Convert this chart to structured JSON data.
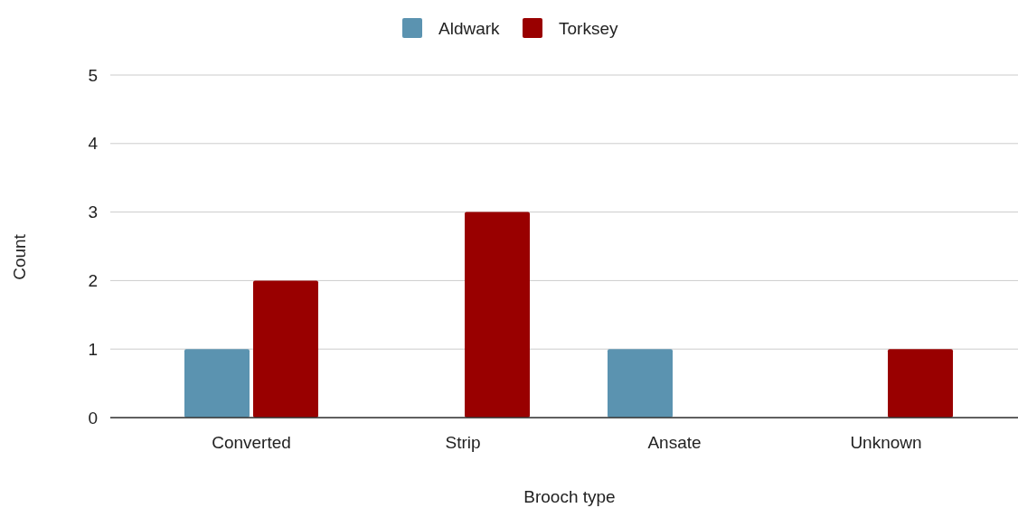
{
  "chart_data": {
    "type": "bar",
    "xlabel": "Brooch type",
    "ylabel": "Count",
    "categories": [
      "Converted",
      "Strip",
      "Ansate",
      "Unknown"
    ],
    "series": [
      {
        "name": "Aldwark",
        "color": "#5b93b0",
        "values": [
          1,
          0,
          1,
          0
        ]
      },
      {
        "name": "Torksey",
        "color": "#990000",
        "values": [
          2,
          3,
          0,
          1
        ]
      }
    ],
    "ylim": [
      0,
      5
    ],
    "yticks": [
      0,
      1,
      2,
      3,
      4,
      5
    ],
    "grid": "y",
    "legend": "top"
  }
}
